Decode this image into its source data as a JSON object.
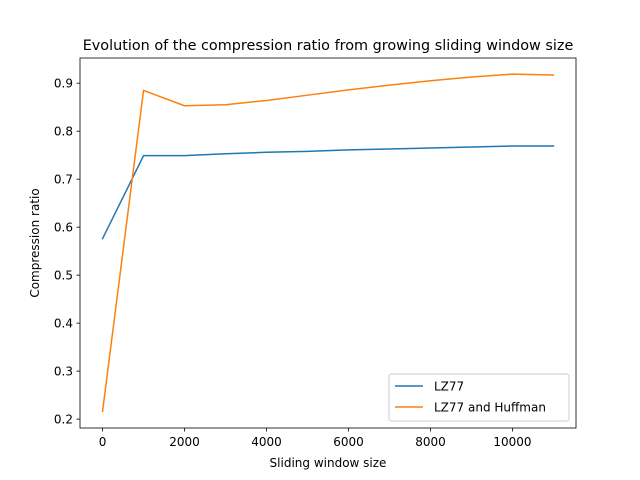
{
  "chart_data": {
    "type": "line",
    "title": "Evolution of the compression ratio from growing sliding window size",
    "xlabel": "Sliding window size",
    "ylabel": "Compression ratio",
    "xlim": [
      -550,
      11550
    ],
    "ylim": [
      0.1815,
      0.9525
    ],
    "xticks": [
      0,
      2000,
      4000,
      6000,
      8000,
      10000
    ],
    "yticks": [
      0.2,
      0.3,
      0.4,
      0.5,
      0.6,
      0.7,
      0.8,
      0.9
    ],
    "grid": false,
    "legend_position": "lower-right",
    "series": [
      {
        "name": "LZ77",
        "color": "#1f77b4",
        "x": [
          0,
          1000,
          2000,
          3000,
          4000,
          5000,
          6000,
          7000,
          8000,
          9000,
          10000,
          11000
        ],
        "y": [
          0.576,
          0.749,
          0.749,
          0.753,
          0.756,
          0.758,
          0.761,
          0.763,
          0.765,
          0.767,
          0.769,
          0.769
        ]
      },
      {
        "name": "LZ77 and Huffman",
        "color": "#ff7f0e",
        "x": [
          0,
          1000,
          2000,
          3000,
          4000,
          5000,
          6000,
          7000,
          8000,
          9000,
          10000,
          11000
        ],
        "y": [
          0.216,
          0.885,
          0.853,
          0.855,
          0.864,
          0.875,
          0.886,
          0.896,
          0.905,
          0.913,
          0.919,
          0.917
        ]
      }
    ]
  }
}
